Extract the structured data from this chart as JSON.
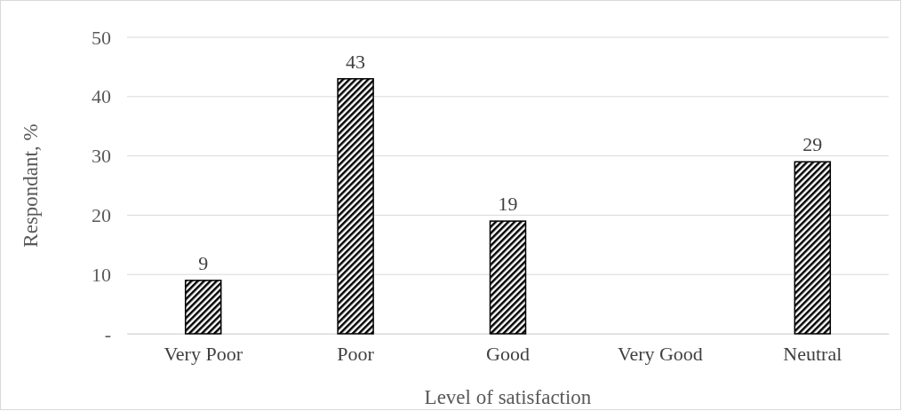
{
  "chart_data": {
    "type": "bar",
    "xlabel": "Level of satisfaction",
    "ylabel": "Respondant, %",
    "categories": [
      "Very Poor",
      "Poor",
      "Good",
      "Very Good",
      "Neutral"
    ],
    "values": [
      9,
      43,
      19,
      null,
      29
    ],
    "value_labels": [
      "9",
      "43",
      "19",
      null,
      "29"
    ],
    "color": "#000000",
    "ylim": [
      0,
      50
    ],
    "yticks": [
      {
        "value": 0,
        "label": "-"
      },
      10,
      20,
      30,
      40,
      50
    ],
    "grid": "y"
  }
}
